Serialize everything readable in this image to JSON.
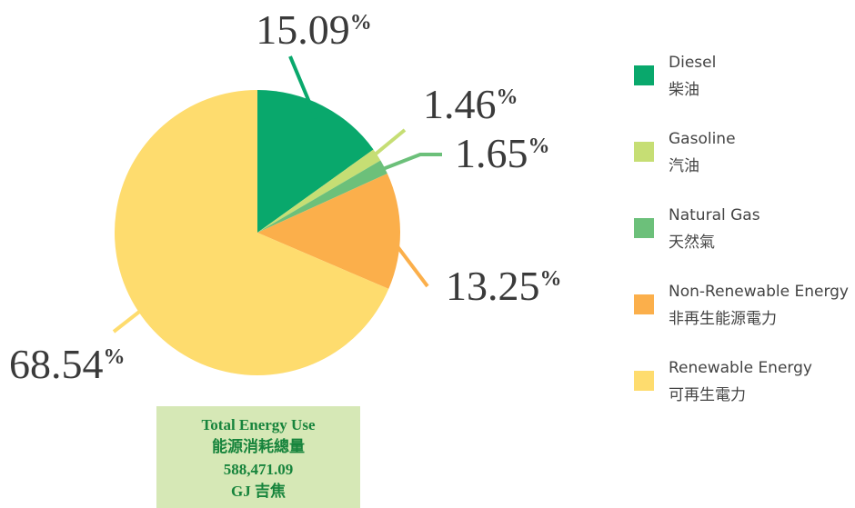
{
  "chart_data": {
    "type": "pie",
    "categories": [
      "Diesel",
      "Gasoline",
      "Natural Gas",
      "Non-Renewable Energy",
      "Renewable Energy"
    ],
    "categories_zh": [
      "柴油",
      "汽油",
      "天然氣",
      "非再生能源電力",
      "可再生電力"
    ],
    "values": [
      15.09,
      1.46,
      1.65,
      13.25,
      68.54
    ],
    "value_labels": [
      "15.09%",
      "1.46%",
      "1.65%",
      "13.25%",
      "68.54%"
    ],
    "colors": [
      "#09a86c",
      "#c6de74",
      "#6cc07a",
      "#fbaf4b",
      "#fedc6e"
    ],
    "total": {
      "title": "Total Energy Use",
      "title_zh": "能源消耗總量",
      "value": {
        "value": 588471.09,
        "label": "588,471.09"
      },
      "unit": "GJ 吉焦"
    }
  }
}
